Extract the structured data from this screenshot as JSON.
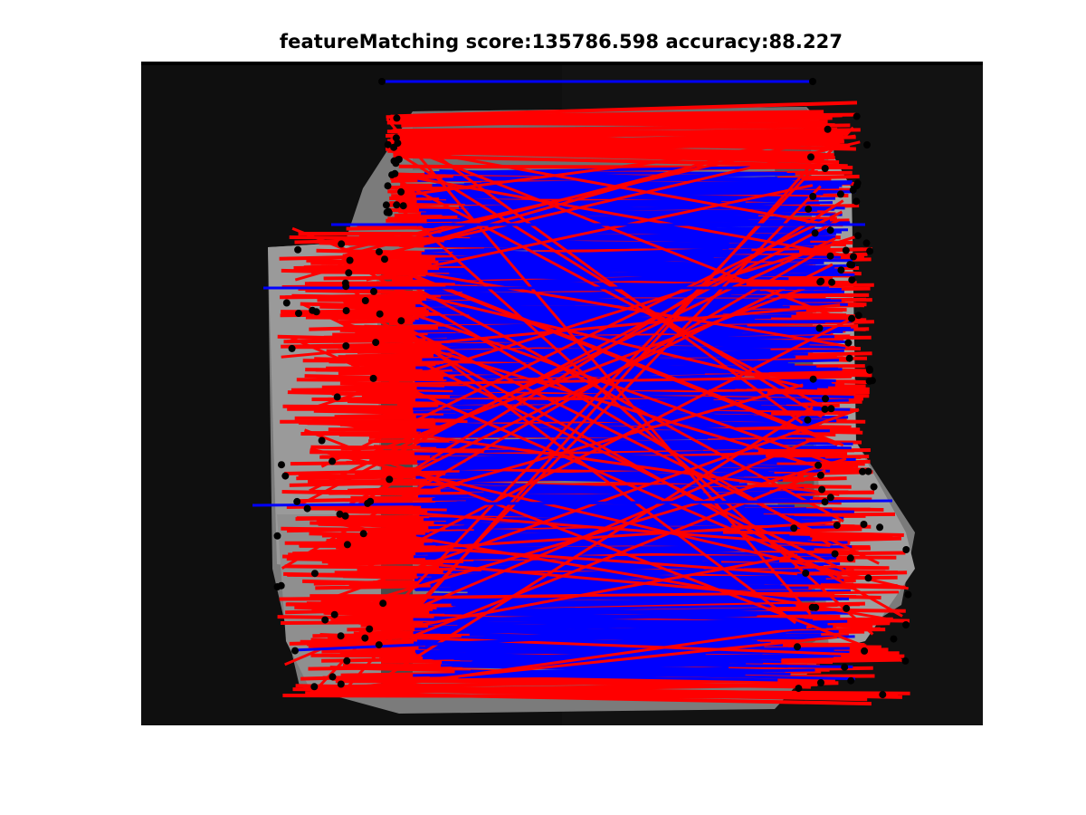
{
  "figure": {
    "title": "featureMatching score:135786.598 accuracy:88.227"
  },
  "matches": {
    "seed": 20231,
    "inlier_color": "#0000ff",
    "outlier_color": "#ff0000",
    "keypoint_color": "#000000"
  },
  "colors": {
    "background": "#ffffff",
    "image_background": "#0d0d0d",
    "building_roof": "#8a8a8a",
    "building_shadow": "#3a3a3a"
  }
}
